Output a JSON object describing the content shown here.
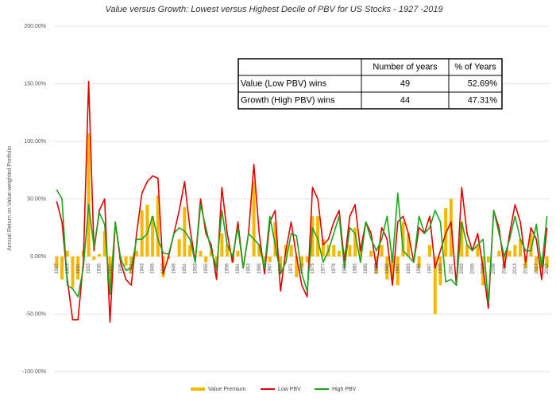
{
  "chart_data": {
    "type": "bar-line",
    "title": "Value versus Growth: Lowest versus Highest Decile of PBV for US Stocks - 1927 -2019",
    "y_label": "Annual Return on Value-weighted Portfolio",
    "categories": [
      "1927",
      null,
      "1929",
      null,
      "1931",
      null,
      "1933",
      null,
      "1935",
      null,
      "1937",
      null,
      "1939",
      null,
      "1941",
      null,
      "1943",
      null,
      "1945",
      null,
      "1947",
      null,
      "1949",
      null,
      "1951",
      null,
      "1953",
      null,
      "1955",
      null,
      "1957",
      null,
      "1959",
      null,
      "1961",
      null,
      "1963",
      null,
      "1965",
      null,
      "1967",
      null,
      "1969",
      null,
      "1971",
      null,
      "1973",
      null,
      "1975",
      null,
      "1977",
      null,
      "1979",
      null,
      "1981",
      null,
      "1983",
      null,
      "1985",
      null,
      "1987",
      null,
      "1989",
      null,
      "1991",
      null,
      "1993",
      null,
      "1995",
      null,
      "1997",
      null,
      "1999",
      null,
      "2001",
      null,
      "2003",
      null,
      "2005",
      null,
      "2007",
      null,
      "2009",
      null,
      "2011",
      null,
      "2013",
      null,
      "2015",
      null,
      "2017",
      null,
      "2019"
    ],
    "series": [
      {
        "name": "Value Premium",
        "type": "bar",
        "color": "#f5b800",
        "values": [
          -10,
          -20,
          5,
          -27,
          -20,
          5,
          107,
          -3,
          2,
          22,
          -24,
          0,
          -3,
          -8,
          -15,
          5,
          40,
          45,
          35,
          53,
          -18,
          -2,
          0,
          15,
          43,
          10,
          0,
          5,
          -5,
          5,
          -10,
          20,
          10,
          -5,
          5,
          0,
          0,
          65,
          10,
          -5,
          -5,
          30,
          -15,
          10,
          10,
          -18,
          -10,
          -5,
          35,
          35,
          15,
          10,
          10,
          5,
          5,
          10,
          25,
          10,
          0,
          5,
          -15,
          10,
          -20,
          -20,
          -25,
          30,
          20,
          0,
          -10,
          0,
          10,
          -50,
          -25,
          42,
          50,
          0,
          30,
          10,
          0,
          10,
          -25,
          -5,
          0,
          5,
          -10,
          5,
          10,
          15,
          -10,
          20,
          -13,
          -10,
          -10
        ]
      },
      {
        "name": "Low PBV",
        "type": "line",
        "color": "#e00000",
        "values": [
          48,
          30,
          -20,
          -55,
          -55,
          -5,
          152,
          5,
          40,
          50,
          -57,
          30,
          -5,
          -20,
          -25,
          20,
          55,
          65,
          70,
          68,
          -15,
          0,
          20,
          40,
          65,
          25,
          -5,
          50,
          20,
          10,
          -20,
          60,
          20,
          -5,
          30,
          -10,
          20,
          80,
          20,
          -15,
          30,
          40,
          -30,
          5,
          30,
          0,
          -25,
          -35,
          60,
          50,
          10,
          15,
          30,
          40,
          -5,
          35,
          45,
          5,
          30,
          20,
          -10,
          25,
          15,
          -25,
          30,
          35,
          20,
          -5,
          25,
          20,
          35,
          -10,
          5,
          20,
          30,
          -25,
          60,
          20,
          5,
          20,
          -10,
          -45,
          40,
          25,
          -10,
          20,
          45,
          30,
          -5,
          25,
          15,
          -20,
          25
        ]
      },
      {
        "name": "High PBV",
        "type": "line",
        "color": "#1aa51a",
        "values": [
          58,
          50,
          -25,
          -28,
          -35,
          -10,
          45,
          8,
          38,
          28,
          -33,
          30,
          -2,
          -12,
          -10,
          15,
          15,
          20,
          35,
          15,
          3,
          2,
          20,
          25,
          22,
          15,
          -5,
          45,
          25,
          5,
          -10,
          40,
          10,
          0,
          25,
          -10,
          20,
          15,
          10,
          -10,
          35,
          10,
          -15,
          -5,
          20,
          18,
          -15,
          -30,
          25,
          15,
          -5,
          5,
          20,
          35,
          -10,
          25,
          20,
          -5,
          30,
          15,
          5,
          15,
          35,
          -5,
          55,
          5,
          0,
          -5,
          35,
          20,
          25,
          40,
          30,
          -22,
          -20,
          -25,
          30,
          10,
          5,
          10,
          15,
          -40,
          40,
          20,
          0,
          15,
          35,
          15,
          5,
          5,
          28,
          -10,
          35
        ]
      }
    ],
    "ylim": [
      -100,
      200
    ],
    "yticks": [
      {
        "value": -100,
        "label": "-100.00%"
      },
      {
        "value": -50,
        "label": "-50.00%"
      },
      {
        "value": 0,
        "label": "0.00%"
      },
      {
        "value": 50,
        "label": "50.00%"
      },
      {
        "value": 100,
        "label": "100.00%"
      },
      {
        "value": 150,
        "label": "150.00%"
      },
      {
        "value": 200,
        "label": "200.00%"
      }
    ],
    "grid": true
  },
  "table": {
    "header": [
      "Number of years",
      "% of Years"
    ],
    "rows": [
      [
        "Value (Low PBV) wins",
        "49",
        "52.69%"
      ],
      [
        "Growth (High PBV) wins",
        "44",
        "47.31%"
      ]
    ]
  }
}
